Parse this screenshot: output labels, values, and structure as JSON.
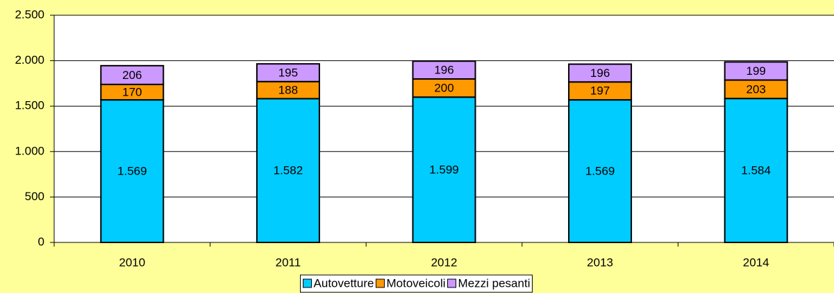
{
  "chart_data": {
    "type": "stacked-bar",
    "categories": [
      "2010",
      "2011",
      "2012",
      "2013",
      "2014"
    ],
    "series": [
      {
        "name": "Autovetture",
        "color": "#00ccff",
        "values": [
          1569,
          1582,
          1599,
          1569,
          1584
        ],
        "value_labels": [
          "1.569",
          "1.582",
          "1.599",
          "1.569",
          "1.584"
        ]
      },
      {
        "name": "Motoveicoli",
        "color": "#ff9900",
        "values": [
          170,
          188,
          200,
          197,
          203
        ]
      },
      {
        "name": "Mezzi pesanti",
        "color": "#cc99ff",
        "values": [
          206,
          195,
          196,
          196,
          199
        ]
      }
    ],
    "ylim": [
      0,
      2500
    ],
    "yticks": [
      0,
      500,
      {
        "value": 1000,
        "label": "1.000"
      },
      {
        "value": 1500,
        "label": "1.500"
      },
      {
        "value": 2000,
        "label": "2.000"
      },
      {
        "value": 2500,
        "label": "2.500"
      }
    ],
    "grid": true,
    "legend": "bottom"
  }
}
